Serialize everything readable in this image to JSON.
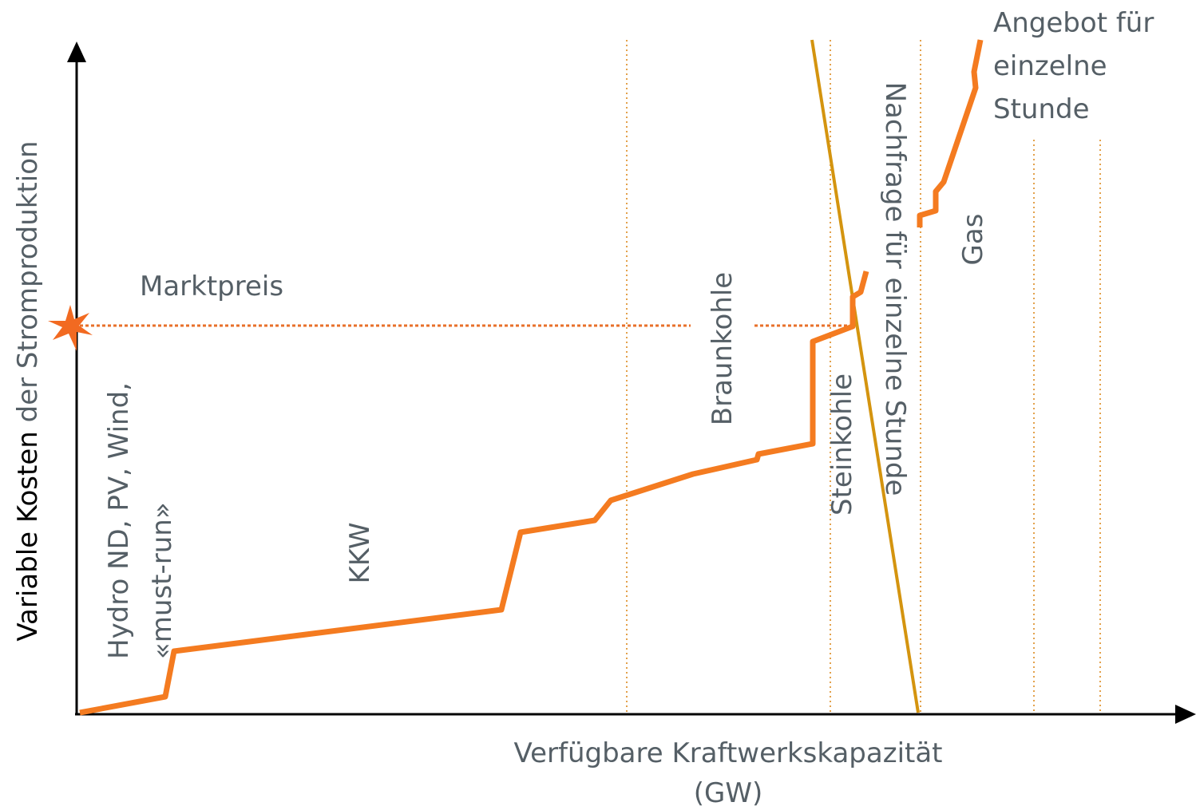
{
  "y_axis_label": {
    "strong": "Variable Kosten",
    "rest": "der Stromproduktion"
  },
  "x_axis_label": [
    "Verfügbare Kraftwerkskapazität",
    "(GW)"
  ],
  "market_price": "Marktpreis",
  "segments": {
    "renewables": [
      "Hydro ND, PV, Wind,",
      "«must-run»"
    ],
    "nuclear": "KKW",
    "lignite": "Braunkohle",
    "hard_coal": "Steinkohle",
    "gas": "Gas"
  },
  "demand_label": "Nachfrage für einzelne Stunde",
  "supply_label": [
    "Angebot für",
    "einzelne",
    "Stunde"
  ]
}
